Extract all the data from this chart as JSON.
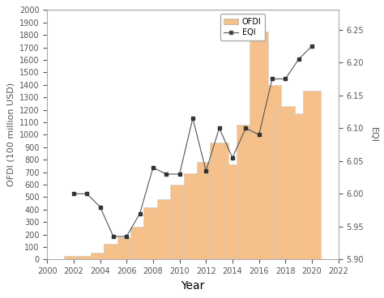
{
  "years": [
    2002,
    2003,
    2004,
    2005,
    2006,
    2007,
    2008,
    2009,
    2010,
    2011,
    2012,
    2013,
    2014,
    2015,
    2016,
    2017,
    2018,
    2019,
    2020
  ],
  "ofdi": [
    27,
    29,
    55,
    123,
    176,
    265,
    418,
    480,
    600,
    690,
    780,
    940,
    760,
    1080,
    1830,
    1400,
    1230,
    1170,
    1350
  ],
  "eqi": [
    6.0,
    6.0,
    5.98,
    5.935,
    5.935,
    5.97,
    6.04,
    6.03,
    6.03,
    6.115,
    6.035,
    6.1,
    6.055,
    6.1,
    6.09,
    6.175,
    6.175,
    6.205,
    6.225
  ],
  "bar_color": "#F5C08A",
  "bar_edgecolor": "#cccccc",
  "line_color": "#555555",
  "marker_color": "#333333",
  "background_color": "#ffffff",
  "xlabel": "Year",
  "ylabel_left": "OFDI (100 million USD)",
  "ylabel_right": "EQI",
  "ylim_left": [
    0,
    2000
  ],
  "ylim_right": [
    5.9,
    6.28
  ],
  "yticks_left": [
    0,
    100,
    200,
    300,
    400,
    500,
    600,
    700,
    800,
    900,
    1000,
    1100,
    1200,
    1300,
    1400,
    1500,
    1600,
    1700,
    1800,
    1900,
    2000
  ],
  "yticks_right": [
    5.9,
    5.95,
    6.0,
    6.05,
    6.1,
    6.15,
    6.2,
    6.25
  ],
  "xlim": [
    2000,
    2022
  ],
  "xticks": [
    2000,
    2002,
    2004,
    2006,
    2008,
    2010,
    2012,
    2014,
    2016,
    2018,
    2020,
    2022
  ],
  "legend_labels": [
    "OFDI",
    "EQI"
  ],
  "bar_width": 1.4,
  "spine_color": "#aaaaaa",
  "tick_color": "#555555",
  "label_fontsize": 8,
  "tick_fontsize": 7,
  "xlabel_fontsize": 10
}
